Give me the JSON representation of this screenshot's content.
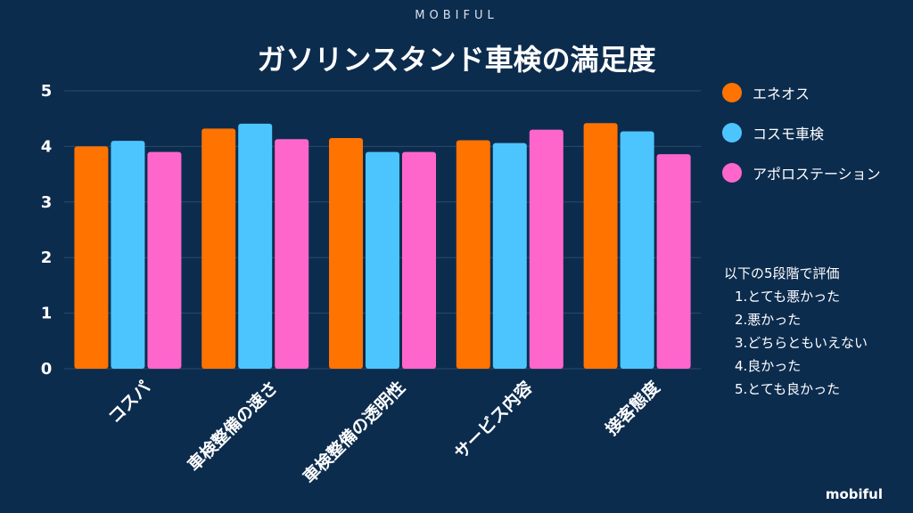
{
  "header": {
    "brand": "MOBIFUL",
    "title": "ガソリンスタンド車検の満足度"
  },
  "footer": {
    "brand": "mobiful"
  },
  "note": {
    "heading": "以下の5段階で評価",
    "items": [
      "1.とても悪かった",
      "2.悪かった",
      "3.どちらともいえない",
      "4.良かった",
      "5.とても良かった"
    ]
  },
  "colors": {
    "background": "#0c2c4e",
    "grid": "#2c4a6a"
  },
  "chart_data": {
    "type": "bar",
    "title": "ガソリンスタンド車検の満足度",
    "categories": [
      "コスパ",
      "車検整備の速さ",
      "車検整備の透明性",
      "サービス内容",
      "接客態度"
    ],
    "series": [
      {
        "name": "エネオス",
        "color": "#ff7300",
        "values": [
          4.0,
          4.32,
          4.15,
          4.11,
          4.42
        ]
      },
      {
        "name": "コスモ車検",
        "color": "#4cc5ff",
        "values": [
          4.1,
          4.41,
          3.9,
          4.06,
          4.27
        ]
      },
      {
        "name": "アポロステーション",
        "color": "#ff66cc",
        "values": [
          3.9,
          4.13,
          3.9,
          4.3,
          3.86
        ]
      }
    ],
    "ylim": [
      0,
      5
    ],
    "yticks": [
      "0",
      "1",
      "2",
      "3",
      "4",
      "5"
    ],
    "grid": true,
    "legend": "right"
  }
}
